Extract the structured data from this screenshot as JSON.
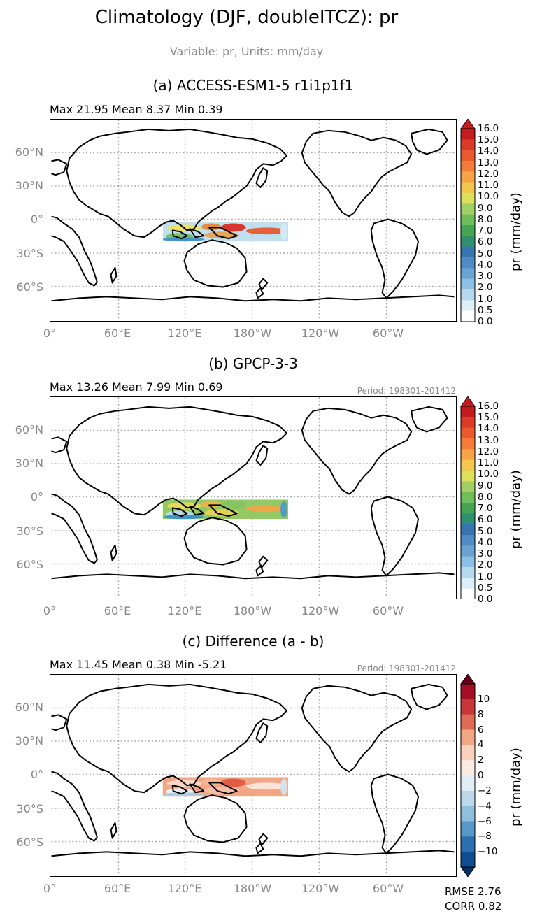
{
  "title": "Climatology (DJF, doubleITCZ): pr",
  "subtitle": "Variable: pr, Units: mm/day",
  "lat_labels": [
    "60°N",
    "30°N",
    "0°",
    "30°S",
    "60°S"
  ],
  "lon_labels": [
    "0°",
    "60°E",
    "120°E",
    "180°W",
    "120°W",
    "60°W"
  ],
  "panels": [
    {
      "title": "(a) ACCESS-ESM1-5 r1i1p1f1",
      "stats": "Max 21.95 Mean 8.37 Min 0.39",
      "period": "",
      "colorbar_label": "pr (mm/day)",
      "colorbar_ticks": [
        "16.0",
        "15.0",
        "14.0",
        "13.0",
        "12.0",
        "11.0",
        "10.0",
        "9.0",
        "8.0",
        "7.0",
        "6.0",
        "5.0",
        "4.0",
        "3.0",
        "2.0",
        "1.0",
        "0.5",
        "0.0"
      ],
      "colorbar_colors": [
        "#c51b1f",
        "#dc3b28",
        "#ea5a2f",
        "#f57b3a",
        "#f9a347",
        "#f4c64d",
        "#dce05a",
        "#a3d063",
        "#6fbe5b",
        "#45a552",
        "#2f8f70",
        "#3675b0",
        "#4f8cc4",
        "#6ba4d4",
        "#8bbfe3",
        "#b5d8ee",
        "#dceef7",
        "#ffffff"
      ],
      "colorbar_arrow_color": "#c51b1f",
      "region_colors": [
        "#f0e25e",
        "#e8863a",
        "#d92d22",
        "#e85a2d",
        "#e9a24a",
        "#bfe0f0",
        "#d6ecf7",
        "#70c067",
        "#3f8fc9"
      ]
    },
    {
      "title": "(b) GPCP-3-3",
      "stats": "Max 13.26 Mean 7.99 Min 0.69",
      "period": "Period: 198301-201412",
      "colorbar_label": "pr (mm/day)",
      "colorbar_ticks": [
        "16.0",
        "15.0",
        "14.0",
        "13.0",
        "12.0",
        "11.0",
        "10.0",
        "9.0",
        "8.0",
        "7.0",
        "6.0",
        "5.0",
        "4.0",
        "3.0",
        "2.0",
        "1.0",
        "0.5",
        "0.0"
      ],
      "colorbar_colors": [
        "#c51b1f",
        "#dc3b28",
        "#ea5a2f",
        "#f57b3a",
        "#f9a347",
        "#f4c64d",
        "#dce05a",
        "#a3d063",
        "#6fbe5b",
        "#45a552",
        "#2f8f70",
        "#3675b0",
        "#4f8cc4",
        "#6ba4d4",
        "#8bbfe3",
        "#b5d8ee",
        "#dceef7",
        "#ffffff"
      ],
      "colorbar_arrow_color": "#c51b1f",
      "region_colors": [
        "#e9d95a",
        "#f0b24a",
        "#86c463",
        "#f2a548",
        "#e8d35a",
        "#92c964",
        "#4f9ac9",
        "#b7dbef",
        "#3b8fc7"
      ]
    },
    {
      "title": "(c) Difference (a - b)",
      "stats": "Max 11.45 Mean 0.38 Min -5.21",
      "period": "Period: 198301-201412",
      "colorbar_label": "pr (mm/day)",
      "colorbar_ticks": [
        "10",
        "8",
        "6",
        "4",
        "2",
        "0",
        "−2",
        "−4",
        "−6",
        "−8",
        "−10"
      ],
      "colorbar_colors": [
        "#a50f25",
        "#c9363a",
        "#e06b55",
        "#f3a684",
        "#fbd1bb",
        "#fbebe3",
        "#e2eef6",
        "#bcd8ea",
        "#8ebfdc",
        "#5699c8",
        "#2c6fae",
        "#0f4d8f"
      ],
      "colorbar_arrow_top": "#67001f",
      "colorbar_arrow_bottom": "#053061",
      "region_colors": [
        "#fbd9c7",
        "#f7b599",
        "#e0573f",
        "#fbe6dc",
        "#f6c0a6",
        "#f2a685",
        "#cfe3f0",
        "#e9f2f8",
        "#a9cde3"
      ]
    }
  ],
  "metrics": {
    "rmse": "RMSE 2.76",
    "corr": "CORR 0.82"
  }
}
